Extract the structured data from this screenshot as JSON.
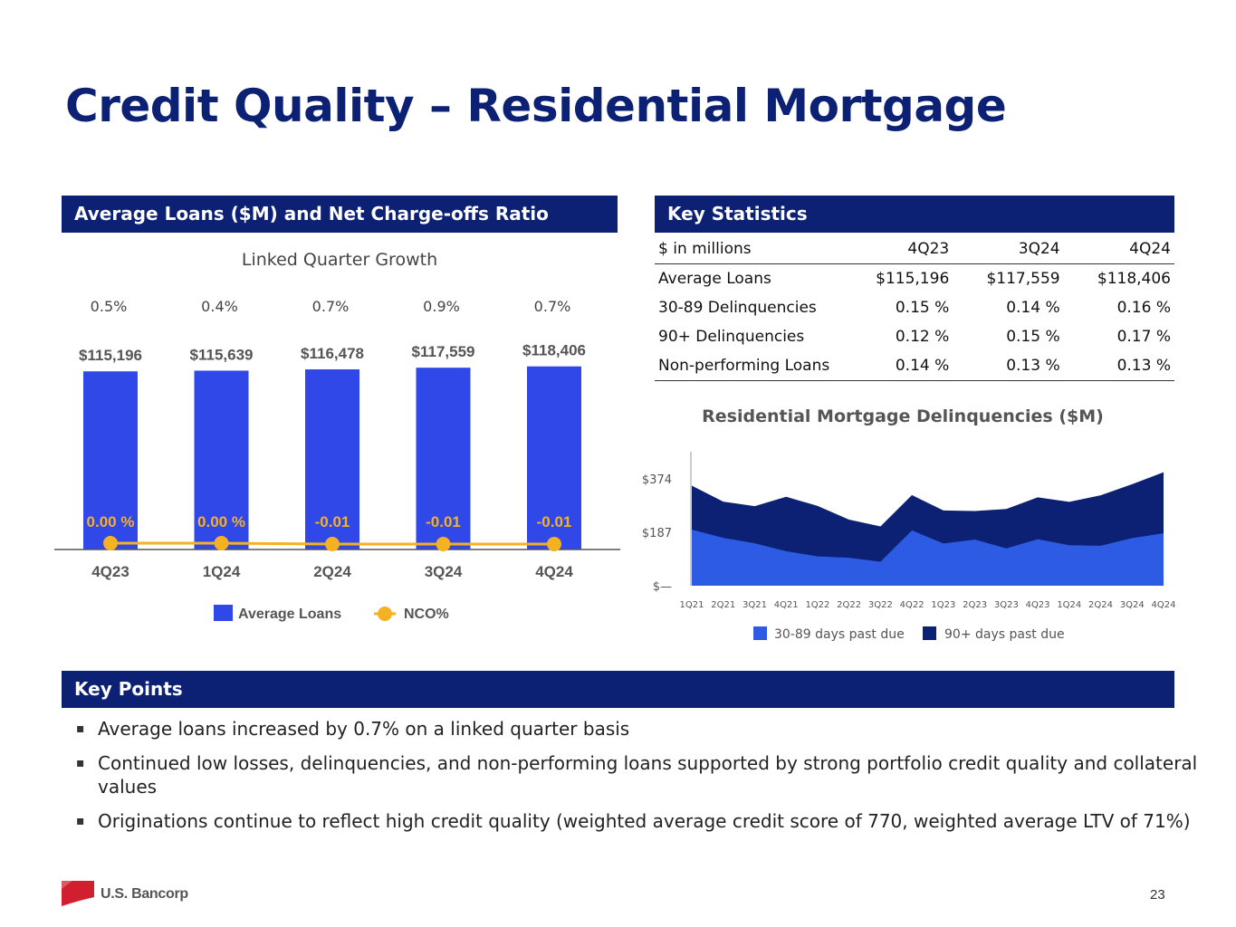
{
  "page": {
    "title": "Credit Quality – Residential Mortgage",
    "page_number": "23"
  },
  "left_panel": {
    "header": "Average Loans ($M) and Net Charge-offs Ratio"
  },
  "stats_panel": {
    "header": "Key Statistics",
    "columns": [
      "$ in millions",
      "4Q23",
      "3Q24",
      "4Q24"
    ],
    "rows": [
      [
        "Average Loans",
        "$115,196",
        "$117,559",
        "$118,406"
      ],
      [
        "30-89 Delinquencies",
        "0.15 %",
        "0.14 %",
        "0.16 %"
      ],
      [
        "90+ Delinquencies",
        "0.12 %",
        "0.15 %",
        "0.17 %"
      ],
      [
        "Non-performing Loans",
        "0.14 %",
        "0.13 %",
        "0.13 %"
      ]
    ]
  },
  "key_points": {
    "header": "Key Points",
    "bullet_char": "▪",
    "items": [
      "Average loans increased by 0.7% on a linked quarter basis",
      "Continued low losses, delinquencies, and non-performing loans supported by strong portfolio credit quality and collateral values",
      "Originations continue to reflect high credit quality (weighted average credit score of 770, weighted average LTV of 71%)"
    ]
  },
  "footer": {
    "logo_text": "U.S. Bancorp"
  },
  "colors": {
    "navy": "#0c2074",
    "bar_blue": "#3048e8",
    "nco_gold": "#f4b223",
    "light_area": "#2d5be3",
    "dark_area": "#0c2074",
    "logo_red": "#d21f30"
  },
  "chart_data": [
    {
      "type": "bar",
      "title": "Linked Quarter Growth",
      "categories": [
        "4Q23",
        "1Q24",
        "2Q24",
        "3Q24",
        "4Q24"
      ],
      "growth_labels": [
        "0.5%",
        "0.4%",
        "0.7%",
        "0.9%",
        "0.7%"
      ],
      "series": [
        {
          "name": "Average Loans",
          "kind": "bar",
          "values": [
            115196,
            115639,
            116478,
            117559,
            118406
          ],
          "labels": [
            "$115,196",
            "$115,639",
            "$116,478",
            "$117,559",
            "$118,406"
          ]
        },
        {
          "name": "NCO%",
          "kind": "line",
          "values": [
            0.0,
            0.0,
            -0.01,
            -0.01,
            -0.01
          ],
          "labels": [
            "0.00 %",
            "0.00 %",
            -0.01,
            -0.01,
            -0.01
          ]
        }
      ],
      "legend": [
        "Average Loans",
        "NCO%"
      ],
      "legend_position": "bottom",
      "ylim": [
        0,
        120000
      ]
    },
    {
      "type": "area",
      "title": "Residential Mortgage Delinquencies ($M)",
      "x": [
        "1Q21",
        "2Q21",
        "3Q21",
        "4Q21",
        "1Q22",
        "2Q22",
        "3Q22",
        "4Q22",
        "1Q23",
        "2Q23",
        "3Q23",
        "4Q23",
        "1Q24",
        "2Q24",
        "3Q24",
        "4Q24"
      ],
      "series": [
        {
          "name": "30-89 days past due",
          "values": [
            197,
            168,
            149,
            121,
            103,
            98,
            84,
            194,
            148,
            162,
            131,
            163,
            142,
            140,
            167,
            184
          ]
        },
        {
          "name": "90+ days past due",
          "values": [
            154,
            127,
            130,
            191,
            177,
            134,
            124,
            124,
            116,
            100,
            138,
            147,
            152,
            177,
            189,
            214
          ]
        }
      ],
      "yticks": [
        0,
        187,
        374
      ],
      "ytick_labels": [
        "$—",
        "$187",
        "$374"
      ],
      "ylim": [
        0,
        470
      ],
      "stacked": true,
      "legend_position": "bottom"
    }
  ]
}
